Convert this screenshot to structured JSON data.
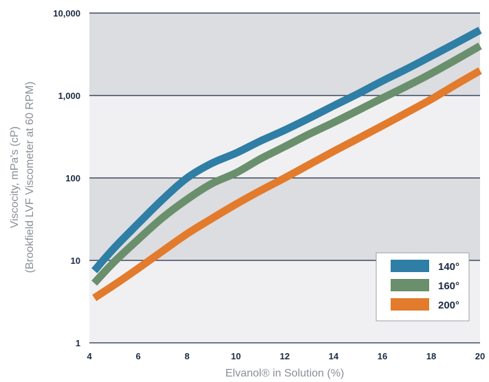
{
  "chart_data": {
    "type": "line",
    "title": "",
    "xlabel": "Elvanol® in Solution (%)",
    "ylabel_line1": "Viscocity, mPa's (cP)",
    "ylabel_line2": "(Brookfield LVF Viscometer at 60 RPM)",
    "xlim": [
      4,
      20
    ],
    "ylim": [
      1,
      10000
    ],
    "yscale": "log",
    "x_ticks": [
      4,
      6,
      8,
      10,
      12,
      14,
      16,
      18,
      20
    ],
    "x_tick_labels": [
      "4",
      "6",
      "8",
      "10",
      "12",
      "14",
      "16",
      "18",
      "20"
    ],
    "y_ticks": [
      1,
      10,
      100,
      1000,
      10000
    ],
    "y_tick_labels": [
      "1",
      "10",
      "100",
      "1,000",
      "10,000"
    ],
    "grid": "horizontal",
    "band_colors": [
      "#dcdde0",
      "#f0f0f2"
    ],
    "legend_position": "bottom-right",
    "series": [
      {
        "name": "140°",
        "color": "#2e7ea5",
        "x": [
          4.2,
          5,
          6,
          7,
          8,
          9,
          10,
          11,
          12,
          13,
          14,
          15,
          16,
          17,
          18,
          19,
          20
        ],
        "y": [
          7.5,
          14,
          28,
          55,
          100,
          150,
          200,
          280,
          380,
          530,
          750,
          1050,
          1500,
          2100,
          3000,
          4300,
          6200
        ]
      },
      {
        "name": "160°",
        "color": "#6a8f6c",
        "x": [
          4.2,
          5,
          6,
          7,
          8,
          9,
          10,
          11,
          12,
          13,
          14,
          15,
          16,
          17,
          18,
          19,
          20
        ],
        "y": [
          5.3,
          9.5,
          18,
          33,
          55,
          85,
          115,
          170,
          240,
          340,
          470,
          660,
          930,
          1300,
          1850,
          2700,
          4000
        ]
      },
      {
        "name": "200°",
        "color": "#e27b2c",
        "x": [
          4.2,
          5,
          6,
          7,
          8,
          9,
          10,
          11,
          12,
          13,
          14,
          15,
          16,
          17,
          18,
          19,
          20
        ],
        "y": [
          3.5,
          5.0,
          8.0,
          13,
          21,
          32,
          48,
          70,
          100,
          145,
          210,
          300,
          430,
          620,
          900,
          1350,
          2000
        ]
      }
    ]
  }
}
